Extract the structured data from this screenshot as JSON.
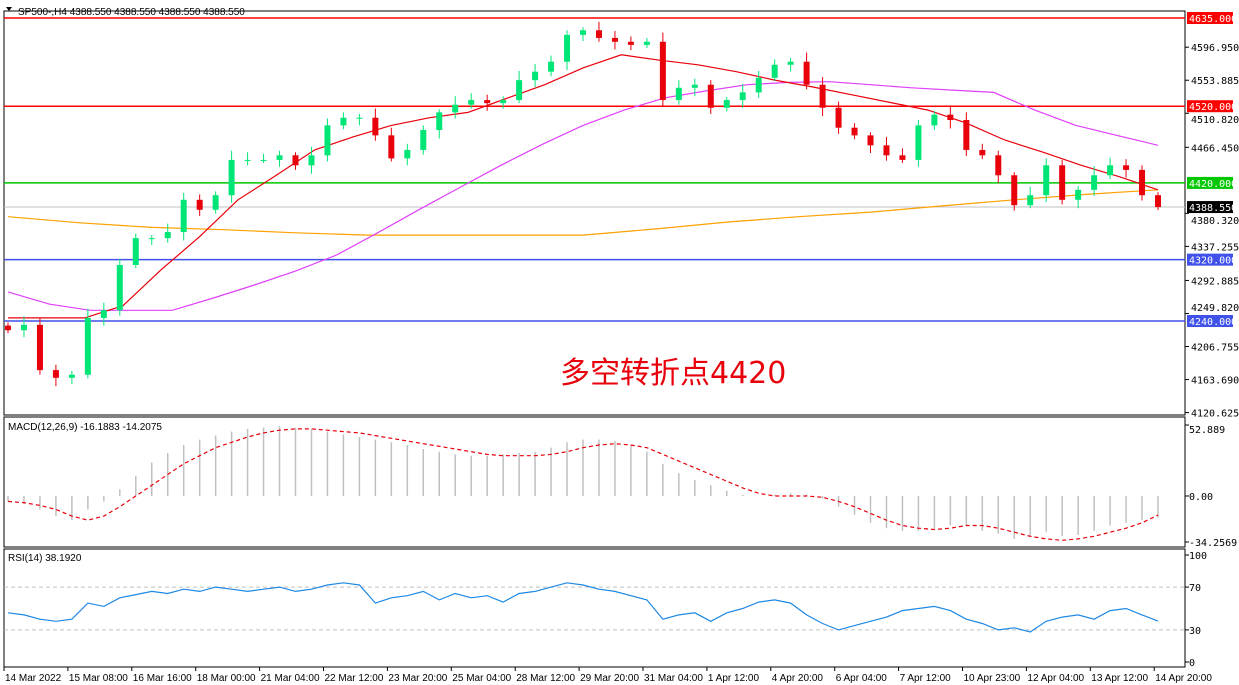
{
  "header": {
    "title": "SP500-,H4  4388.550 4388.550 4388.550 4388.550"
  },
  "annotation": "多空转折点4420",
  "colors": {
    "bull": "#00e676",
    "bear": "#e8000b",
    "ma_fast": "#e8000b",
    "ma_mid": "#e040fb",
    "ma_slow": "#ffa000",
    "rsi": "#1e88e5",
    "macd_hist": "#c0c0c0",
    "macd_signal": "#e8000b"
  },
  "price_axis": {
    "ticks": [
      "4596.950",
      "4553.885",
      "4510.820",
      "4466.450",
      "4380.320",
      "4337.255",
      "4292.885",
      "4249.820",
      "4206.755",
      "4163.690",
      "4120.625"
    ],
    "levels": [
      {
        "label": "4635.000",
        "value": 4635,
        "color": "#ff0000"
      },
      {
        "label": "4520.000",
        "value": 4520,
        "color": "#ff0000"
      },
      {
        "label": "4420.000",
        "value": 4420,
        "color": "#00c800"
      },
      {
        "label": "4320.000",
        "value": 4320,
        "color": "#3f51e8"
      },
      {
        "label": "4240.000",
        "value": 4240,
        "color": "#3f51e8"
      }
    ],
    "current": {
      "label": "4388.550",
      "value": 4388.55
    }
  },
  "chart_data": [
    {
      "type": "candlestick",
      "title": "SP500-,H4",
      "ylim": [
        4120.625,
        4640
      ],
      "closes": [
        4228,
        4235,
        4176,
        4166,
        4170,
        4244,
        4254,
        4313,
        4348,
        4348,
        4356,
        4398,
        4385,
        4404,
        4450,
        4450,
        4450,
        4456,
        4443,
        4456,
        4495,
        4505,
        4505,
        4482,
        4452,
        4463,
        4489,
        4512,
        4522,
        4528,
        4524,
        4528,
        4554,
        4565,
        4578,
        4613,
        4619,
        4609,
        4604,
        4600,
        4604,
        4528,
        4544,
        4548,
        4518,
        4528,
        4538,
        4557,
        4574,
        4578,
        4548,
        4518,
        4492,
        4482,
        4469,
        4456,
        4450,
        4495,
        4509,
        4502,
        4463,
        4456,
        4430,
        4391,
        4404,
        4443,
        4398,
        4411,
        4430,
        4443,
        4437,
        4404,
        4388.55
      ],
      "ma_fast": [
        4244,
        4244,
        4244,
        4260,
        4307,
        4350,
        4398,
        4430,
        4463,
        4480,
        4495,
        4505,
        4512,
        4530,
        4548,
        4570,
        4587,
        4580,
        4574,
        4565,
        4554,
        4545,
        4535,
        4525,
        4515,
        4498,
        4476,
        4460,
        4443,
        4428,
        4411
      ],
      "ma_mid": [
        4278,
        4262,
        4254,
        4254,
        4254,
        4270,
        4287,
        4305,
        4326,
        4355,
        4385,
        4414,
        4443,
        4470,
        4495,
        4515,
        4531,
        4540,
        4548,
        4551,
        4552,
        4548,
        4544,
        4541,
        4538,
        4515,
        4495,
        4482,
        4469
      ],
      "ma_slow": [
        4376,
        4368,
        4362,
        4359,
        4355,
        4352,
        4352,
        4352,
        4352,
        4360,
        4369,
        4376,
        4382,
        4390,
        4398,
        4405,
        4411
      ]
    },
    {
      "type": "bar+line",
      "title": "MACD(12,26,9) -16.1883 -14.2075",
      "ylim": [
        -34.2569,
        52.889
      ],
      "ticks": [
        "52.889",
        "0.00",
        "-34.2569"
      ],
      "histogram": [
        -4,
        -6,
        -10,
        -15,
        -18,
        -10,
        -4,
        5,
        15,
        25,
        32,
        38,
        42,
        45,
        48,
        50,
        51,
        52,
        51,
        50,
        48,
        46,
        44,
        42,
        40,
        38,
        35,
        33,
        31,
        30,
        30,
        31,
        32,
        33,
        36,
        40,
        42,
        42,
        41,
        38,
        33,
        24,
        17,
        12,
        8,
        4,
        1,
        0,
        1,
        2,
        1,
        -2,
        -8,
        -14,
        -20,
        -24,
        -26,
        -26,
        -24,
        -22,
        -22,
        -26,
        -28,
        -32,
        -30,
        -27,
        -30,
        -29,
        -26,
        -22,
        -20,
        -18,
        -16.19
      ],
      "signal": [
        -4,
        -5,
        -7,
        -10,
        -15,
        -18,
        -15,
        -8,
        0,
        8,
        16,
        24,
        30,
        36,
        40,
        44,
        47,
        49,
        50,
        50,
        49,
        48,
        47,
        45,
        43,
        41,
        39,
        37,
        35,
        33,
        31,
        30,
        30,
        30,
        31,
        33,
        36,
        38,
        39,
        38,
        36,
        31,
        26,
        21,
        16,
        11,
        6,
        2,
        0,
        0,
        0,
        -1,
        -4,
        -8,
        -13,
        -18,
        -22,
        -24,
        -25,
        -24,
        -22,
        -22,
        -24,
        -27,
        -30,
        -32,
        -33,
        -32,
        -30,
        -27,
        -24,
        -20,
        -14.21
      ]
    },
    {
      "type": "line",
      "title": "RSI(14) 38.1920",
      "ylim": [
        0,
        100
      ],
      "ticks": [
        "100",
        "70",
        "30",
        "0"
      ],
      "levels": [
        70,
        30
      ],
      "values": [
        46,
        44,
        40,
        38,
        40,
        55,
        52,
        60,
        63,
        66,
        64,
        68,
        66,
        70,
        68,
        66,
        68,
        70,
        66,
        68,
        72,
        74,
        72,
        55,
        60,
        62,
        66,
        58,
        64,
        60,
        62,
        56,
        64,
        66,
        70,
        74,
        72,
        68,
        66,
        62,
        58,
        40,
        44,
        46,
        38,
        46,
        50,
        56,
        58,
        55,
        44,
        36,
        30,
        34,
        38,
        42,
        48,
        50,
        52,
        48,
        40,
        36,
        30,
        32,
        28,
        38,
        42,
        44,
        40,
        48,
        50,
        44,
        38.19
      ]
    }
  ],
  "time_axis": [
    "14 Mar 2022",
    "15 Mar 08:00",
    "16 Mar 16:00",
    "18 Mar 00:00",
    "21 Mar 04:00",
    "22 Mar 12:00",
    "23 Mar 20:00",
    "25 Mar 04:00",
    "28 Mar 12:00",
    "29 Mar 20:00",
    "31 Mar 04:00",
    "1 Apr 12:00",
    "4 Apr 20:00",
    "6 Apr 04:00",
    "7 Apr 12:00",
    "10 Apr 23:00",
    "12 Apr 04:00",
    "13 Apr 12:00",
    "14 Apr 20:00"
  ]
}
